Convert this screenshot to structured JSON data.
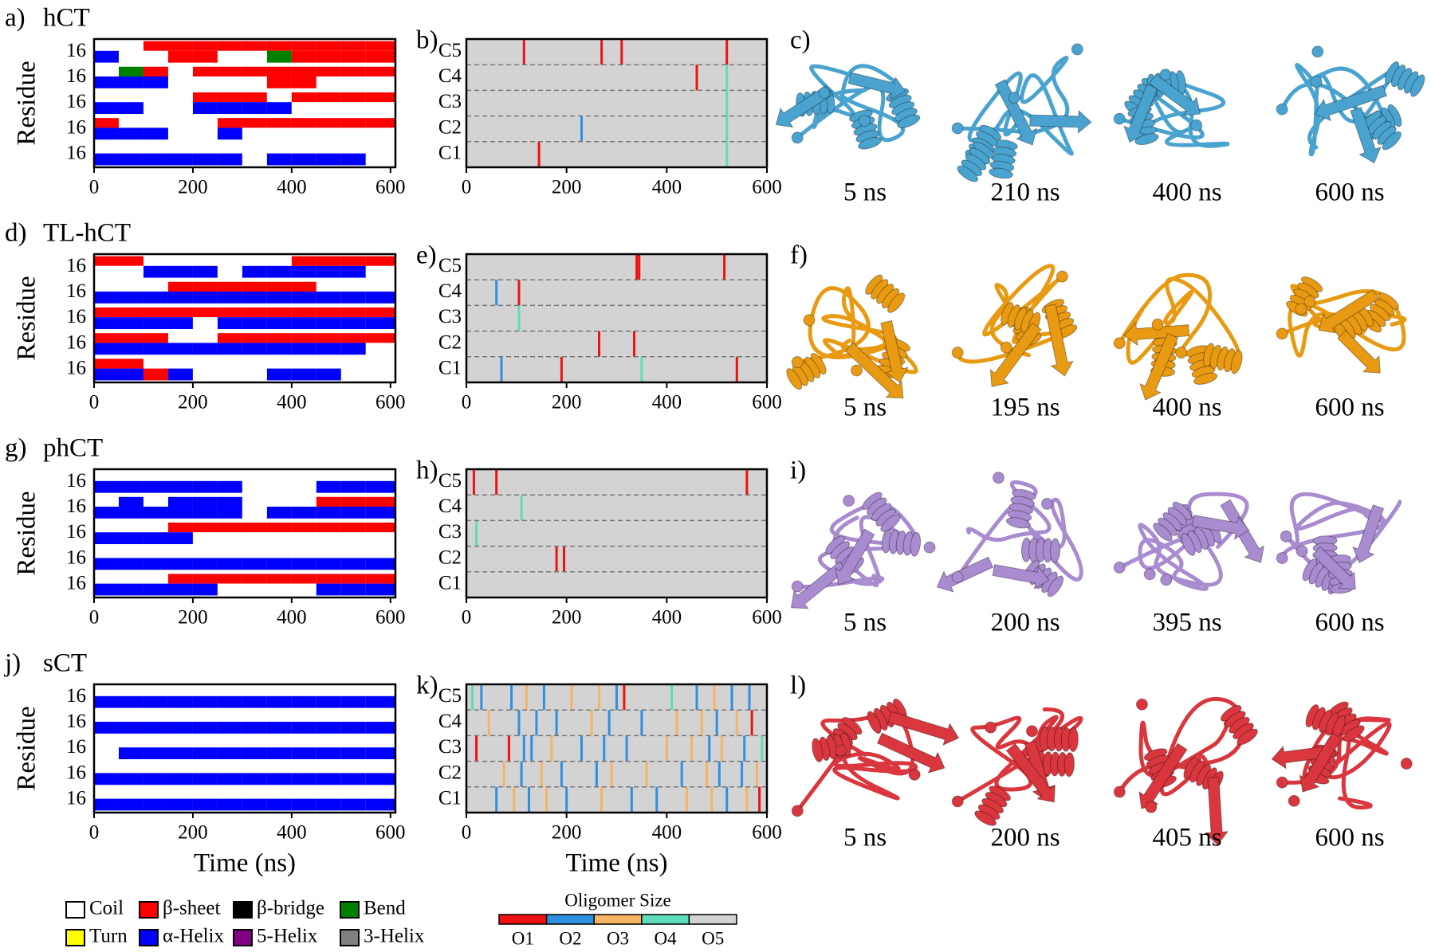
{
  "chart_data": [
    {
      "type": "dssp",
      "label": "a)",
      "title": "hCT",
      "ylabel": "Residue",
      "categories": [
        "16",
        "16",
        "16",
        "16",
        "16"
      ],
      "xlim": [
        0,
        610
      ],
      "xticks": [
        0,
        200,
        400,
        600
      ],
      "bins": [
        0,
        50,
        100,
        150,
        200,
        250,
        300,
        350,
        400,
        450,
        500,
        550,
        610
      ],
      "values": [
        [
          [
            0,
            0,
            1,
            1,
            1,
            1,
            1,
            1,
            1,
            1,
            1,
            1
          ],
          [
            5,
            0,
            0,
            1,
            1,
            0,
            0,
            3,
            1,
            1,
            1,
            1
          ]
        ],
        [
          [
            0,
            3,
            1,
            0,
            1,
            1,
            1,
            1,
            1,
            1,
            1,
            1
          ],
          [
            5,
            5,
            5,
            0,
            0,
            0,
            0,
            1,
            1,
            0,
            0,
            0
          ]
        ],
        [
          [
            0,
            0,
            0,
            0,
            1,
            1,
            1,
            0,
            1,
            1,
            1,
            1
          ],
          [
            5,
            5,
            0,
            0,
            5,
            5,
            5,
            5,
            0,
            0,
            0,
            0
          ]
        ],
        [
          [
            1,
            0,
            0,
            0,
            0,
            1,
            1,
            1,
            1,
            1,
            1,
            1
          ],
          [
            5,
            5,
            5,
            0,
            0,
            5,
            0,
            0,
            0,
            0,
            0,
            0
          ]
        ],
        [
          [
            0,
            0,
            0,
            0,
            0,
            0,
            0,
            0,
            0,
            0,
            0,
            0
          ],
          [
            5,
            5,
            5,
            5,
            5,
            5,
            0,
            5,
            5,
            5,
            5,
            0
          ]
        ]
      ]
    },
    {
      "type": "oligomer",
      "label": "b)",
      "categories": [
        "C1",
        "C2",
        "C3",
        "C4",
        "C5"
      ],
      "xlim": [
        0,
        600
      ],
      "xticks": [
        0,
        200,
        400,
        600
      ],
      "events": [
        [
          520,
          4,
          0
        ],
        [
          520,
          3,
          3
        ],
        [
          520,
          2,
          3
        ],
        [
          520,
          1,
          3
        ],
        [
          520,
          0,
          3
        ],
        [
          115,
          4,
          0
        ],
        [
          145,
          0,
          0
        ],
        [
          230,
          1,
          1
        ],
        [
          270,
          4,
          0
        ],
        [
          310,
          4,
          0
        ],
        [
          460,
          3,
          0
        ]
      ]
    },
    {
      "type": "dssp",
      "label": "d)",
      "title": "TL-hCT",
      "ylabel": "Residue",
      "categories": [
        "16",
        "16",
        "16",
        "16",
        "16"
      ],
      "xlim": [
        0,
        610
      ],
      "xticks": [
        0,
        200,
        400,
        600
      ],
      "bins": [
        0,
        50,
        100,
        150,
        200,
        250,
        300,
        350,
        400,
        450,
        500,
        550,
        610
      ],
      "values": [
        [
          [
            1,
            1,
            0,
            0,
            0,
            0,
            0,
            0,
            1,
            1,
            1,
            1
          ],
          [
            0,
            0,
            5,
            5,
            5,
            0,
            5,
            5,
            5,
            5,
            5,
            0
          ]
        ],
        [
          [
            0,
            0,
            0,
            1,
            1,
            1,
            1,
            1,
            1,
            0,
            0,
            0
          ],
          [
            5,
            5,
            5,
            5,
            5,
            5,
            5,
            5,
            5,
            5,
            5,
            5
          ]
        ],
        [
          [
            1,
            1,
            1,
            1,
            1,
            1,
            1,
            1,
            1,
            1,
            1,
            1
          ],
          [
            5,
            5,
            5,
            5,
            0,
            5,
            5,
            5,
            5,
            5,
            5,
            5
          ]
        ],
        [
          [
            1,
            1,
            1,
            0,
            0,
            1,
            1,
            1,
            1,
            1,
            1,
            1
          ],
          [
            5,
            5,
            5,
            5,
            5,
            5,
            5,
            5,
            5,
            5,
            5,
            0
          ]
        ],
        [
          [
            1,
            1,
            0,
            0,
            0,
            0,
            0,
            0,
            0,
            0,
            0,
            0
          ],
          [
            5,
            5,
            1,
            5,
            0,
            0,
            0,
            5,
            5,
            5,
            0,
            0
          ]
        ]
      ]
    },
    {
      "type": "oligomer",
      "label": "e)",
      "categories": [
        "C1",
        "C2",
        "C3",
        "C4",
        "C5"
      ],
      "xlim": [
        0,
        600
      ],
      "xticks": [
        0,
        200,
        400,
        600
      ],
      "events": [
        [
          340,
          4,
          0
        ],
        [
          345,
          4,
          0
        ],
        [
          515,
          4,
          0
        ],
        [
          60,
          3,
          1
        ],
        [
          105,
          3,
          0
        ],
        [
          265,
          1,
          0
        ],
        [
          335,
          1,
          0
        ],
        [
          540,
          0,
          0
        ],
        [
          190,
          0,
          0
        ],
        [
          70,
          0,
          1
        ],
        [
          350,
          0,
          3
        ],
        [
          105,
          2,
          3
        ]
      ]
    },
    {
      "type": "dssp",
      "label": "g)",
      "title": "phCT",
      "ylabel": "Residue",
      "categories": [
        "16",
        "16",
        "16",
        "16",
        "16"
      ],
      "xlim": [
        0,
        610
      ],
      "xticks": [
        0,
        200,
        400,
        600
      ],
      "bins": [
        0,
        50,
        100,
        150,
        200,
        250,
        300,
        350,
        400,
        450,
        500,
        550,
        610
      ],
      "values": [
        [
          [
            0,
            0,
            0,
            0,
            0,
            0,
            0,
            0,
            0,
            0,
            0,
            0
          ],
          [
            5,
            5,
            5,
            5,
            5,
            5,
            0,
            0,
            0,
            5,
            5,
            5
          ]
        ],
        [
          [
            0,
            5,
            0,
            5,
            5,
            5,
            0,
            0,
            0,
            1,
            1,
            1
          ],
          [
            5,
            5,
            5,
            5,
            5,
            5,
            0,
            5,
            5,
            5,
            5,
            5
          ]
        ],
        [
          [
            0,
            0,
            0,
            1,
            1,
            1,
            1,
            1,
            1,
            1,
            1,
            1
          ],
          [
            5,
            5,
            5,
            5,
            0,
            0,
            0,
            0,
            0,
            0,
            0,
            0
          ]
        ],
        [
          [
            0,
            0,
            0,
            0,
            0,
            0,
            0,
            0,
            0,
            0,
            0,
            0
          ],
          [
            5,
            5,
            5,
            5,
            5,
            5,
            5,
            5,
            5,
            5,
            5,
            5
          ]
        ],
        [
          [
            0,
            0,
            0,
            1,
            1,
            1,
            1,
            1,
            1,
            1,
            1,
            1
          ],
          [
            5,
            5,
            5,
            5,
            5,
            0,
            0,
            0,
            0,
            5,
            5,
            5
          ]
        ]
      ]
    },
    {
      "type": "oligomer",
      "label": "h)",
      "categories": [
        "C1",
        "C2",
        "C3",
        "C4",
        "C5"
      ],
      "xlim": [
        0,
        600
      ],
      "xticks": [
        0,
        200,
        400,
        600
      ],
      "events": [
        [
          15,
          4,
          0
        ],
        [
          60,
          4,
          0
        ],
        [
          560,
          4,
          0
        ],
        [
          180,
          1,
          0
        ],
        [
          195,
          1,
          0
        ],
        [
          20,
          2,
          3
        ],
        [
          110,
          3,
          3
        ]
      ]
    },
    {
      "type": "dssp",
      "label": "j)",
      "title": "sCT",
      "ylabel": "Residue",
      "xlabel": "Time (ns)",
      "categories": [
        "16",
        "16",
        "16",
        "16",
        "16"
      ],
      "xlim": [
        0,
        610
      ],
      "xticks": [
        0,
        200,
        400,
        600
      ],
      "bins": [
        0,
        50,
        100,
        150,
        200,
        250,
        300,
        350,
        400,
        450,
        500,
        550,
        610
      ],
      "values": [
        [
          [
            0,
            0,
            0,
            0,
            0,
            0,
            0,
            0,
            0,
            0,
            0,
            0
          ],
          [
            5,
            5,
            5,
            5,
            5,
            5,
            5,
            5,
            5,
            5,
            5,
            5
          ]
        ],
        [
          [
            0,
            0,
            0,
            0,
            0,
            0,
            0,
            0,
            0,
            0,
            0,
            0
          ],
          [
            5,
            5,
            5,
            5,
            5,
            5,
            5,
            5,
            5,
            5,
            5,
            5
          ]
        ],
        [
          [
            0,
            0,
            0,
            0,
            0,
            0,
            0,
            0,
            0,
            0,
            0,
            0
          ],
          [
            0,
            5,
            5,
            5,
            5,
            5,
            5,
            5,
            5,
            5,
            5,
            5
          ]
        ],
        [
          [
            0,
            0,
            0,
            0,
            0,
            0,
            0,
            0,
            0,
            0,
            0,
            0
          ],
          [
            5,
            5,
            5,
            5,
            5,
            5,
            5,
            5,
            5,
            5,
            5,
            5
          ]
        ],
        [
          [
            0,
            0,
            0,
            0,
            0,
            0,
            0,
            0,
            0,
            0,
            0,
            0
          ],
          [
            5,
            5,
            5,
            5,
            5,
            5,
            5,
            5,
            5,
            5,
            5,
            5
          ]
        ]
      ]
    },
    {
      "type": "oligomer",
      "label": "k)",
      "xlabel": "Time (ns)",
      "categories": [
        "C1",
        "C2",
        "C3",
        "C4",
        "C5"
      ],
      "xlim": [
        0,
        600
      ],
      "xticks": [
        0,
        200,
        400,
        600
      ],
      "events": [
        [
          12,
          4,
          3
        ],
        [
          20,
          2,
          0
        ],
        [
          30,
          4,
          1
        ],
        [
          45,
          3,
          2
        ],
        [
          60,
          0,
          1
        ],
        [
          75,
          1,
          2
        ],
        [
          85,
          2,
          0
        ],
        [
          90,
          4,
          1
        ],
        [
          95,
          0,
          2
        ],
        [
          105,
          3,
          1
        ],
        [
          110,
          1,
          1
        ],
        [
          115,
          2,
          1
        ],
        [
          120,
          4,
          2
        ],
        [
          125,
          0,
          1
        ],
        [
          130,
          2,
          1
        ],
        [
          140,
          3,
          1
        ],
        [
          150,
          1,
          2
        ],
        [
          155,
          4,
          1
        ],
        [
          160,
          0,
          2
        ],
        [
          170,
          2,
          2
        ],
        [
          180,
          3,
          1
        ],
        [
          190,
          1,
          1
        ],
        [
          200,
          0,
          1
        ],
        [
          210,
          4,
          2
        ],
        [
          230,
          2,
          1
        ],
        [
          250,
          3,
          2
        ],
        [
          260,
          1,
          1
        ],
        [
          265,
          4,
          2
        ],
        [
          270,
          0,
          2
        ],
        [
          275,
          2,
          1
        ],
        [
          285,
          3,
          1
        ],
        [
          290,
          1,
          2
        ],
        [
          300,
          4,
          1
        ],
        [
          315,
          4,
          0
        ],
        [
          320,
          2,
          1
        ],
        [
          330,
          0,
          1
        ],
        [
          350,
          3,
          1
        ],
        [
          360,
          1,
          2
        ],
        [
          380,
          0,
          1
        ],
        [
          400,
          2,
          2
        ],
        [
          410,
          4,
          3
        ],
        [
          420,
          3,
          2
        ],
        [
          430,
          1,
          1
        ],
        [
          440,
          0,
          2
        ],
        [
          450,
          2,
          2
        ],
        [
          460,
          4,
          1
        ],
        [
          470,
          3,
          2
        ],
        [
          480,
          1,
          2
        ],
        [
          485,
          2,
          1
        ],
        [
          490,
          0,
          2
        ],
        [
          495,
          4,
          2
        ],
        [
          500,
          3,
          1
        ],
        [
          505,
          1,
          1
        ],
        [
          510,
          2,
          2
        ],
        [
          520,
          0,
          1
        ],
        [
          530,
          4,
          1
        ],
        [
          540,
          3,
          2
        ],
        [
          550,
          1,
          1
        ],
        [
          555,
          2,
          1
        ],
        [
          560,
          0,
          2
        ],
        [
          565,
          4,
          1
        ],
        [
          570,
          3,
          0
        ],
        [
          580,
          1,
          2
        ],
        [
          585,
          0,
          0
        ],
        [
          590,
          2,
          3
        ]
      ]
    }
  ],
  "structures": [
    {
      "label": "c)",
      "color": "#4aa3cf",
      "times": [
        "5 ns",
        "210 ns",
        "400 ns",
        "600 ns"
      ]
    },
    {
      "label": "f)",
      "color": "#e89a12",
      "times": [
        "5 ns",
        "195 ns",
        "400 ns",
        "600 ns"
      ]
    },
    {
      "label": "i)",
      "color": "#a98bd0",
      "times": [
        "5 ns",
        "200 ns",
        "395 ns",
        "600 ns"
      ]
    },
    {
      "label": "l)",
      "color": "#d9363e",
      "times": [
        "5 ns",
        "200 ns",
        "405 ns",
        "600 ns"
      ]
    }
  ],
  "dssp_legend": {
    "states": [
      "Coil",
      "β-sheet",
      "β-bridge",
      "Bend",
      "Turn",
      "α-Helix",
      "5-Helix",
      "3-Helix"
    ],
    "colors": [
      "#ffffff",
      "#ff0000",
      "#000000",
      "#008000",
      "#ffff00",
      "#0000ff",
      "#800080",
      "#808080"
    ]
  },
  "oligomer_legend": {
    "title": "Oligomer Size",
    "sizes": [
      "O1",
      "O2",
      "O3",
      "O4",
      "O5"
    ],
    "colors": [
      "#ee1111",
      "#2f8fe0",
      "#f5b562",
      "#5fdcb8",
      "#d3d3d3"
    ]
  }
}
